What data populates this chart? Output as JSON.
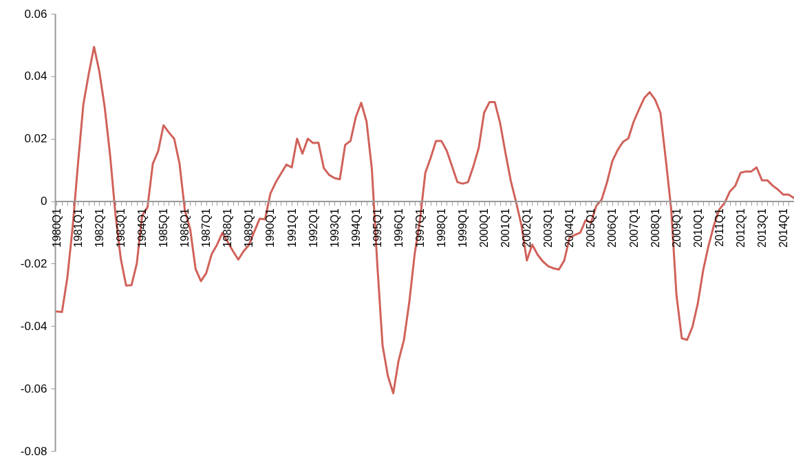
{
  "chart_data": {
    "type": "line",
    "color": "#d0625a",
    "line_style": "solid",
    "categories": [
      "1980Q1",
      null,
      null,
      null,
      "1981Q1",
      null,
      null,
      null,
      "1982Q1",
      null,
      null,
      null,
      "1983Q1",
      null,
      null,
      null,
      "1984Q1",
      null,
      null,
      null,
      "1985Q1",
      null,
      null,
      null,
      "1986Q1",
      null,
      null,
      null,
      "1987Q1",
      null,
      null,
      null,
      "1988Q1",
      null,
      null,
      null,
      "1989Q1",
      null,
      null,
      null,
      "1990Q1",
      null,
      null,
      null,
      "1991Q1",
      null,
      null,
      null,
      "1992Q1",
      null,
      null,
      null,
      "1993Q1",
      null,
      null,
      null,
      "1994Q1",
      null,
      null,
      null,
      "1995Q1",
      null,
      null,
      null,
      "1996Q1",
      null,
      null,
      null,
      "1997Q1",
      null,
      null,
      null,
      "1998Q1",
      null,
      null,
      null,
      "1999Q1",
      null,
      null,
      null,
      "2000Q1",
      null,
      null,
      null,
      "2001Q1",
      null,
      null,
      null,
      "2002Q1",
      null,
      null,
      null,
      "2003Q1",
      null,
      null,
      null,
      "2004Q1",
      null,
      null,
      null,
      "2005Q1",
      null,
      null,
      null,
      "2006Q1",
      null,
      null,
      null,
      "2007Q1",
      null,
      null,
      null,
      "2008Q1",
      null,
      null,
      null,
      "2009Q1",
      null,
      null,
      null,
      "2010Q1",
      null,
      null,
      null,
      "2011Q1",
      null,
      null,
      null,
      "2012Q1",
      null,
      null,
      null,
      "2013Q1",
      null,
      null,
      null,
      "2014Q1",
      null,
      null
    ],
    "values": [
      -0.0353,
      -0.0355,
      -0.0245,
      -0.0082,
      0.0121,
      0.031,
      0.0407,
      0.0494,
      0.0414,
      0.03,
      0.0148,
      -0.0041,
      -0.0184,
      -0.027,
      -0.0269,
      -0.02,
      -0.0046,
      -0.002,
      0.012,
      0.016,
      0.0243,
      0.022,
      0.02,
      0.012,
      -0.003,
      -0.009,
      -0.0217,
      -0.0256,
      -0.023,
      -0.017,
      -0.014,
      -0.0102,
      -0.013,
      -0.016,
      -0.0187,
      -0.016,
      -0.014,
      -0.0097,
      -0.0056,
      -0.0058,
      0.0024,
      0.006,
      0.0089,
      0.0117,
      0.0108,
      0.02,
      0.0152,
      0.02,
      0.0186,
      0.0187,
      0.0106,
      0.0084,
      0.0074,
      0.007,
      0.018,
      0.0193,
      0.027,
      0.0315,
      0.0255,
      0.0102,
      -0.02,
      -0.0462,
      -0.056,
      -0.0615,
      -0.051,
      -0.0444,
      -0.0323,
      -0.017,
      -0.006,
      0.0091,
      0.0139,
      0.0193,
      0.0193,
      0.0162,
      0.0112,
      0.0061,
      0.0056,
      0.0061,
      0.0112,
      0.0171,
      0.0283,
      0.0317,
      0.0317,
      0.025,
      0.0154,
      0.0065,
      -0.0004,
      -0.0078,
      -0.019,
      -0.0139,
      -0.0171,
      -0.0193,
      -0.0208,
      -0.0215,
      -0.0219,
      -0.019,
      -0.0117,
      -0.0108,
      -0.0101,
      -0.0061,
      -0.0069,
      -0.0015,
      0.0005,
      0.006,
      0.0128,
      0.0164,
      0.019,
      0.0201,
      0.0255,
      0.0294,
      0.0331,
      0.0349,
      0.0325,
      0.0283,
      0.0134,
      -0.0022,
      -0.03,
      -0.0439,
      -0.0444,
      -0.0402,
      -0.0327,
      -0.0221,
      -0.0143,
      -0.0078,
      -0.0027,
      -0.0006,
      0.0031,
      0.0049,
      0.0091,
      0.0095,
      0.0095,
      0.0108,
      0.0067,
      0.0067,
      0.005,
      0.0037,
      0.0021,
      0.0021,
      0.001
    ],
    "ylim": [
      -0.08,
      0.06
    ],
    "yticks": [
      -0.08,
      -0.06,
      -0.04,
      -0.02,
      0,
      0.02,
      0.04,
      0.06
    ]
  }
}
